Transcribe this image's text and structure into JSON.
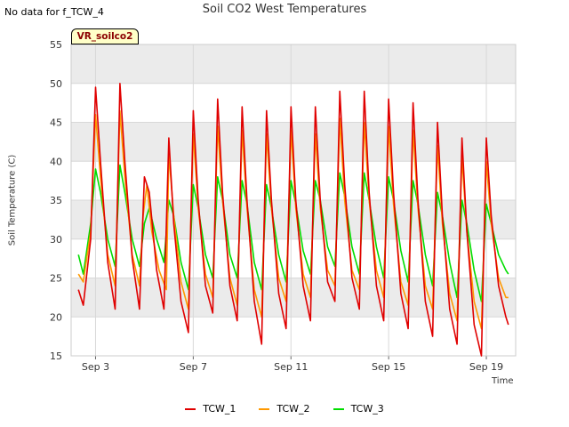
{
  "header": {
    "no_data_note": "No data for f_TCW_4",
    "site_badge": "VR_soilco2"
  },
  "colors": {
    "TCW_1": "#e00000",
    "TCW_2": "#ff9900",
    "TCW_3": "#00dd00",
    "band": "#ebebeb",
    "grid": "#d8d8d8"
  },
  "chart_data": {
    "type": "line",
    "title": "Soil CO2 West Temperatures",
    "xlabel": "Time",
    "ylabel": "Soil Temperature (C)",
    "x_unit": "days (Sep 2 = 0)",
    "xlim": [
      0.0,
      18.2
    ],
    "ylim": [
      15,
      55
    ],
    "x_ticks": [
      {
        "value": 1,
        "label": "Sep 3"
      },
      {
        "value": 5,
        "label": "Sep 7"
      },
      {
        "value": 9,
        "label": "Sep 11"
      },
      {
        "value": 13,
        "label": "Sep 15"
      },
      {
        "value": 17,
        "label": "Sep 19"
      }
    ],
    "y_ticks": [
      15,
      20,
      25,
      30,
      35,
      40,
      45,
      50,
      55
    ],
    "grid": true,
    "legend_position": "bottom",
    "series": [
      {
        "name": "TCW_1",
        "x": [
          0.3,
          0.5,
          0.8,
          1.0,
          1.2,
          1.5,
          1.8,
          2.0,
          2.2,
          2.5,
          2.8,
          3.0,
          3.2,
          3.5,
          3.8,
          4.0,
          4.2,
          4.5,
          4.8,
          5.0,
          5.2,
          5.5,
          5.8,
          6.0,
          6.2,
          6.5,
          6.8,
          7.0,
          7.2,
          7.5,
          7.8,
          8.0,
          8.2,
          8.5,
          8.8,
          9.0,
          9.2,
          9.5,
          9.8,
          10.0,
          10.2,
          10.5,
          10.8,
          11.0,
          11.2,
          11.5,
          11.8,
          12.0,
          12.2,
          12.5,
          12.8,
          13.0,
          13.2,
          13.5,
          13.8,
          14.0,
          14.2,
          14.5,
          14.8,
          15.0,
          15.2,
          15.5,
          15.8,
          16.0,
          16.2,
          16.5,
          16.8,
          17.0,
          17.2,
          17.5,
          17.8,
          17.9
        ],
        "y": [
          23.5,
          21.5,
          30.0,
          49.5,
          40.0,
          27.0,
          21.0,
          50.0,
          40.0,
          27.5,
          21.0,
          38.0,
          36.0,
          26.0,
          21.0,
          43.0,
          32.0,
          22.0,
          18.0,
          46.5,
          35.0,
          24.0,
          20.5,
          48.0,
          36.0,
          24.0,
          19.5,
          47.0,
          35.0,
          22.0,
          16.5,
          46.5,
          35.0,
          23.0,
          18.5,
          47.0,
          35.0,
          24.0,
          19.5,
          47.0,
          35.0,
          24.5,
          22.0,
          49.0,
          37.0,
          25.0,
          21.0,
          49.0,
          36.0,
          24.0,
          19.5,
          48.0,
          36.0,
          23.0,
          18.5,
          47.5,
          35.0,
          22.0,
          17.5,
          45.0,
          33.0,
          21.0,
          16.5,
          43.0,
          31.0,
          19.0,
          15.0,
          43.0,
          33.0,
          24.0,
          20.0,
          19.0
        ]
      },
      {
        "name": "TCW_2",
        "x": [
          0.3,
          0.5,
          0.8,
          1.0,
          1.2,
          1.5,
          1.8,
          2.0,
          2.2,
          2.5,
          2.8,
          2.95,
          3.1,
          3.3,
          3.6,
          3.9,
          4.0,
          4.2,
          4.5,
          4.8,
          5.0,
          5.2,
          5.5,
          5.8,
          6.0,
          6.2,
          6.5,
          6.8,
          7.0,
          7.2,
          7.5,
          7.8,
          8.0,
          8.2,
          8.5,
          8.8,
          9.0,
          9.2,
          9.5,
          9.8,
          10.0,
          10.2,
          10.5,
          10.8,
          11.0,
          11.2,
          11.5,
          11.8,
          12.0,
          12.2,
          12.5,
          12.8,
          13.0,
          13.2,
          13.5,
          13.8,
          14.0,
          14.2,
          14.5,
          14.8,
          15.0,
          15.2,
          15.5,
          15.8,
          16.0,
          16.2,
          16.5,
          16.8,
          17.0,
          17.2,
          17.5,
          17.8,
          17.9
        ],
        "y": [
          25.5,
          24.5,
          31.0,
          46.0,
          38.0,
          28.0,
          24.0,
          46.5,
          38.0,
          28.0,
          24.0,
          33.0,
          37.0,
          31.0,
          26.0,
          23.5,
          41.0,
          33.0,
          24.5,
          21.0,
          43.5,
          34.0,
          25.5,
          22.5,
          44.5,
          35.0,
          25.0,
          21.5,
          44.0,
          34.0,
          23.5,
          20.0,
          43.5,
          34.0,
          25.0,
          22.0,
          44.0,
          34.0,
          25.5,
          22.5,
          43.5,
          34.0,
          26.0,
          24.0,
          45.5,
          35.0,
          26.0,
          23.5,
          45.0,
          35.0,
          26.0,
          22.5,
          44.5,
          34.5,
          24.5,
          21.5,
          44.0,
          34.0,
          24.0,
          21.0,
          42.0,
          32.0,
          23.0,
          19.5,
          40.5,
          31.0,
          22.0,
          18.5,
          40.0,
          32.0,
          25.0,
          22.5,
          22.5
        ]
      },
      {
        "name": "TCW_3",
        "x": [
          0.3,
          0.5,
          0.8,
          1.0,
          1.2,
          1.5,
          1.8,
          2.0,
          2.2,
          2.5,
          2.8,
          3.0,
          3.2,
          3.5,
          3.8,
          4.0,
          4.2,
          4.5,
          4.8,
          5.0,
          5.2,
          5.5,
          5.8,
          6.0,
          6.2,
          6.5,
          6.8,
          7.0,
          7.2,
          7.5,
          7.8,
          8.0,
          8.2,
          8.5,
          8.8,
          9.0,
          9.2,
          9.5,
          9.8,
          10.0,
          10.2,
          10.5,
          10.8,
          11.0,
          11.2,
          11.5,
          11.8,
          12.0,
          12.2,
          12.5,
          12.8,
          13.0,
          13.2,
          13.5,
          13.8,
          14.0,
          14.2,
          14.5,
          14.8,
          15.0,
          15.2,
          15.5,
          15.8,
          16.0,
          16.2,
          16.5,
          16.8,
          17.0,
          17.2,
          17.5,
          17.8,
          17.9
        ],
        "y": [
          28.0,
          25.5,
          32.0,
          39.0,
          36.0,
          30.0,
          26.5,
          39.5,
          36.0,
          30.0,
          26.5,
          32.0,
          34.0,
          30.0,
          27.0,
          35.0,
          33.0,
          27.0,
          23.5,
          37.0,
          34.0,
          28.0,
          25.0,
          38.0,
          35.0,
          28.0,
          25.0,
          37.5,
          34.5,
          27.0,
          23.5,
          37.0,
          34.0,
          28.0,
          24.5,
          37.5,
          34.5,
          28.5,
          25.5,
          37.5,
          35.0,
          29.0,
          26.5,
          38.5,
          35.5,
          29.0,
          25.5,
          38.5,
          35.0,
          29.0,
          25.0,
          38.0,
          35.0,
          28.5,
          24.5,
          37.5,
          34.5,
          28.0,
          24.0,
          36.0,
          33.0,
          27.0,
          22.5,
          35.0,
          32.0,
          26.0,
          22.0,
          34.5,
          32.0,
          28.0,
          26.0,
          25.5
        ]
      }
    ]
  }
}
